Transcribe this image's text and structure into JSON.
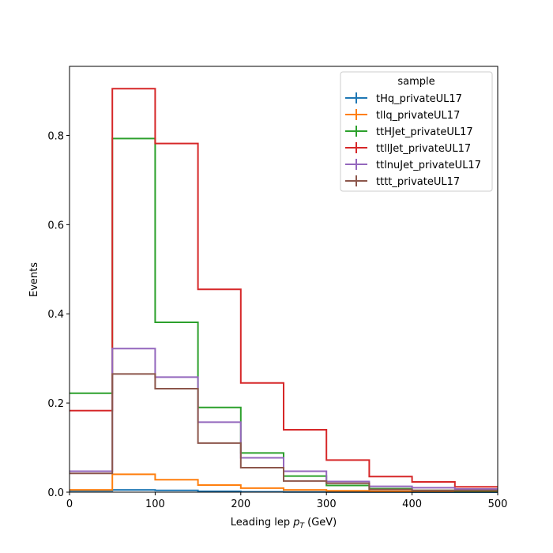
{
  "chart_data": {
    "type": "histogram-step",
    "xlabel_main": "Leading lep ",
    "xlabel_sym": "p",
    "xlabel_sub": "T",
    "xlabel_unit": " (GeV)",
    "ylabel": "Events",
    "xlim": [
      0,
      500
    ],
    "ylim": [
      0,
      0.955
    ],
    "xticks": [
      0,
      100,
      200,
      300,
      400,
      500
    ],
    "yticks": [
      0.0,
      0.2,
      0.4,
      0.6,
      0.8
    ],
    "ytick_labels": [
      "0.0",
      "0.2",
      "0.4",
      "0.6",
      "0.8"
    ],
    "bin_edges": [
      0,
      50,
      100,
      150,
      200,
      250,
      300,
      350,
      400,
      450,
      500
    ],
    "legend": {
      "title": "sample",
      "placement": "top-right"
    },
    "series": [
      {
        "name": "tHq_privateUL17",
        "color": "#1f77b4",
        "values": [
          0.003,
          0.005,
          0.004,
          0.002,
          0.001,
          0.0005,
          0.0003,
          0.0002,
          0.0001,
          0.0001
        ]
      },
      {
        "name": "tllq_privateUL17",
        "color": "#ff7f0e",
        "values": [
          0.005,
          0.04,
          0.028,
          0.016,
          0.009,
          0.005,
          0.003,
          0.002,
          0.001,
          0.001
        ]
      },
      {
        "name": "ttHJet_privateUL17",
        "color": "#2ca02c",
        "values": [
          0.222,
          0.793,
          0.381,
          0.19,
          0.088,
          0.036,
          0.015,
          0.008,
          0.004,
          0.003
        ]
      },
      {
        "name": "ttllJet_privateUL17",
        "color": "#d62728",
        "values": [
          0.183,
          0.905,
          0.782,
          0.455,
          0.245,
          0.14,
          0.072,
          0.035,
          0.023,
          0.012
        ]
      },
      {
        "name": "ttlnuJet_privateUL17",
        "color": "#9467bd",
        "values": [
          0.047,
          0.322,
          0.258,
          0.157,
          0.077,
          0.047,
          0.024,
          0.013,
          0.01,
          0.007
        ]
      },
      {
        "name": "tttt_privateUL17",
        "color": "#8c564b",
        "values": [
          0.042,
          0.265,
          0.232,
          0.11,
          0.055,
          0.025,
          0.02,
          0.006,
          0.004,
          0.004
        ]
      }
    ]
  }
}
